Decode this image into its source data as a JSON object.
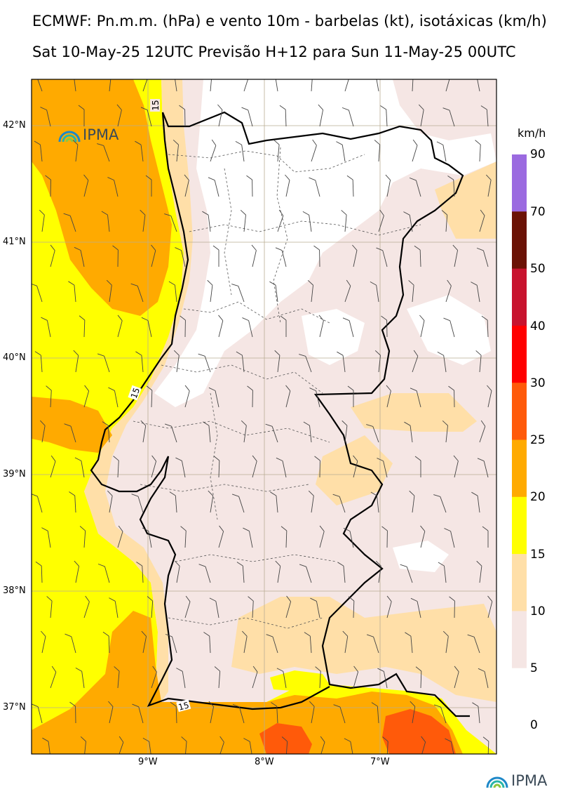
{
  "title_line1": "ECMWF: Pn.m.m. (hPa) e vento 10m - barbelas (kt), isotáxicas (km/h)",
  "title_line2": "Sat 10-May-25 12UTC Previsão H+12 para Sun 11-May-25 00UTC",
  "colorbar": {
    "unit": "km/h",
    "levels": [
      {
        "label": "90"
      },
      {
        "label": "70"
      },
      {
        "label": "50"
      },
      {
        "label": "40"
      },
      {
        "label": "30"
      },
      {
        "label": "25"
      },
      {
        "label": "20"
      },
      {
        "label": "15"
      },
      {
        "label": "10"
      },
      {
        "label": "5"
      },
      {
        "label": "0"
      }
    ],
    "colors": [
      "#9b6ae0",
      "#6b1205",
      "#c8132e",
      "#ff0000",
      "#ff5a0a",
      "#ffaa00",
      "#ffff00",
      "#ffdfa8",
      "#f5e6e4",
      "#ffffff"
    ]
  },
  "axes": {
    "lat_labels": [
      "42°N",
      "41°N",
      "40°N",
      "39°N",
      "38°N",
      "37°N"
    ],
    "lon_labels": [
      "9°W",
      "8°W",
      "7°W"
    ]
  },
  "contour_labels": [
    "15",
    "15",
    "15"
  ],
  "logo_text": "IPMA",
  "footer_logo_text": "IPMA"
}
